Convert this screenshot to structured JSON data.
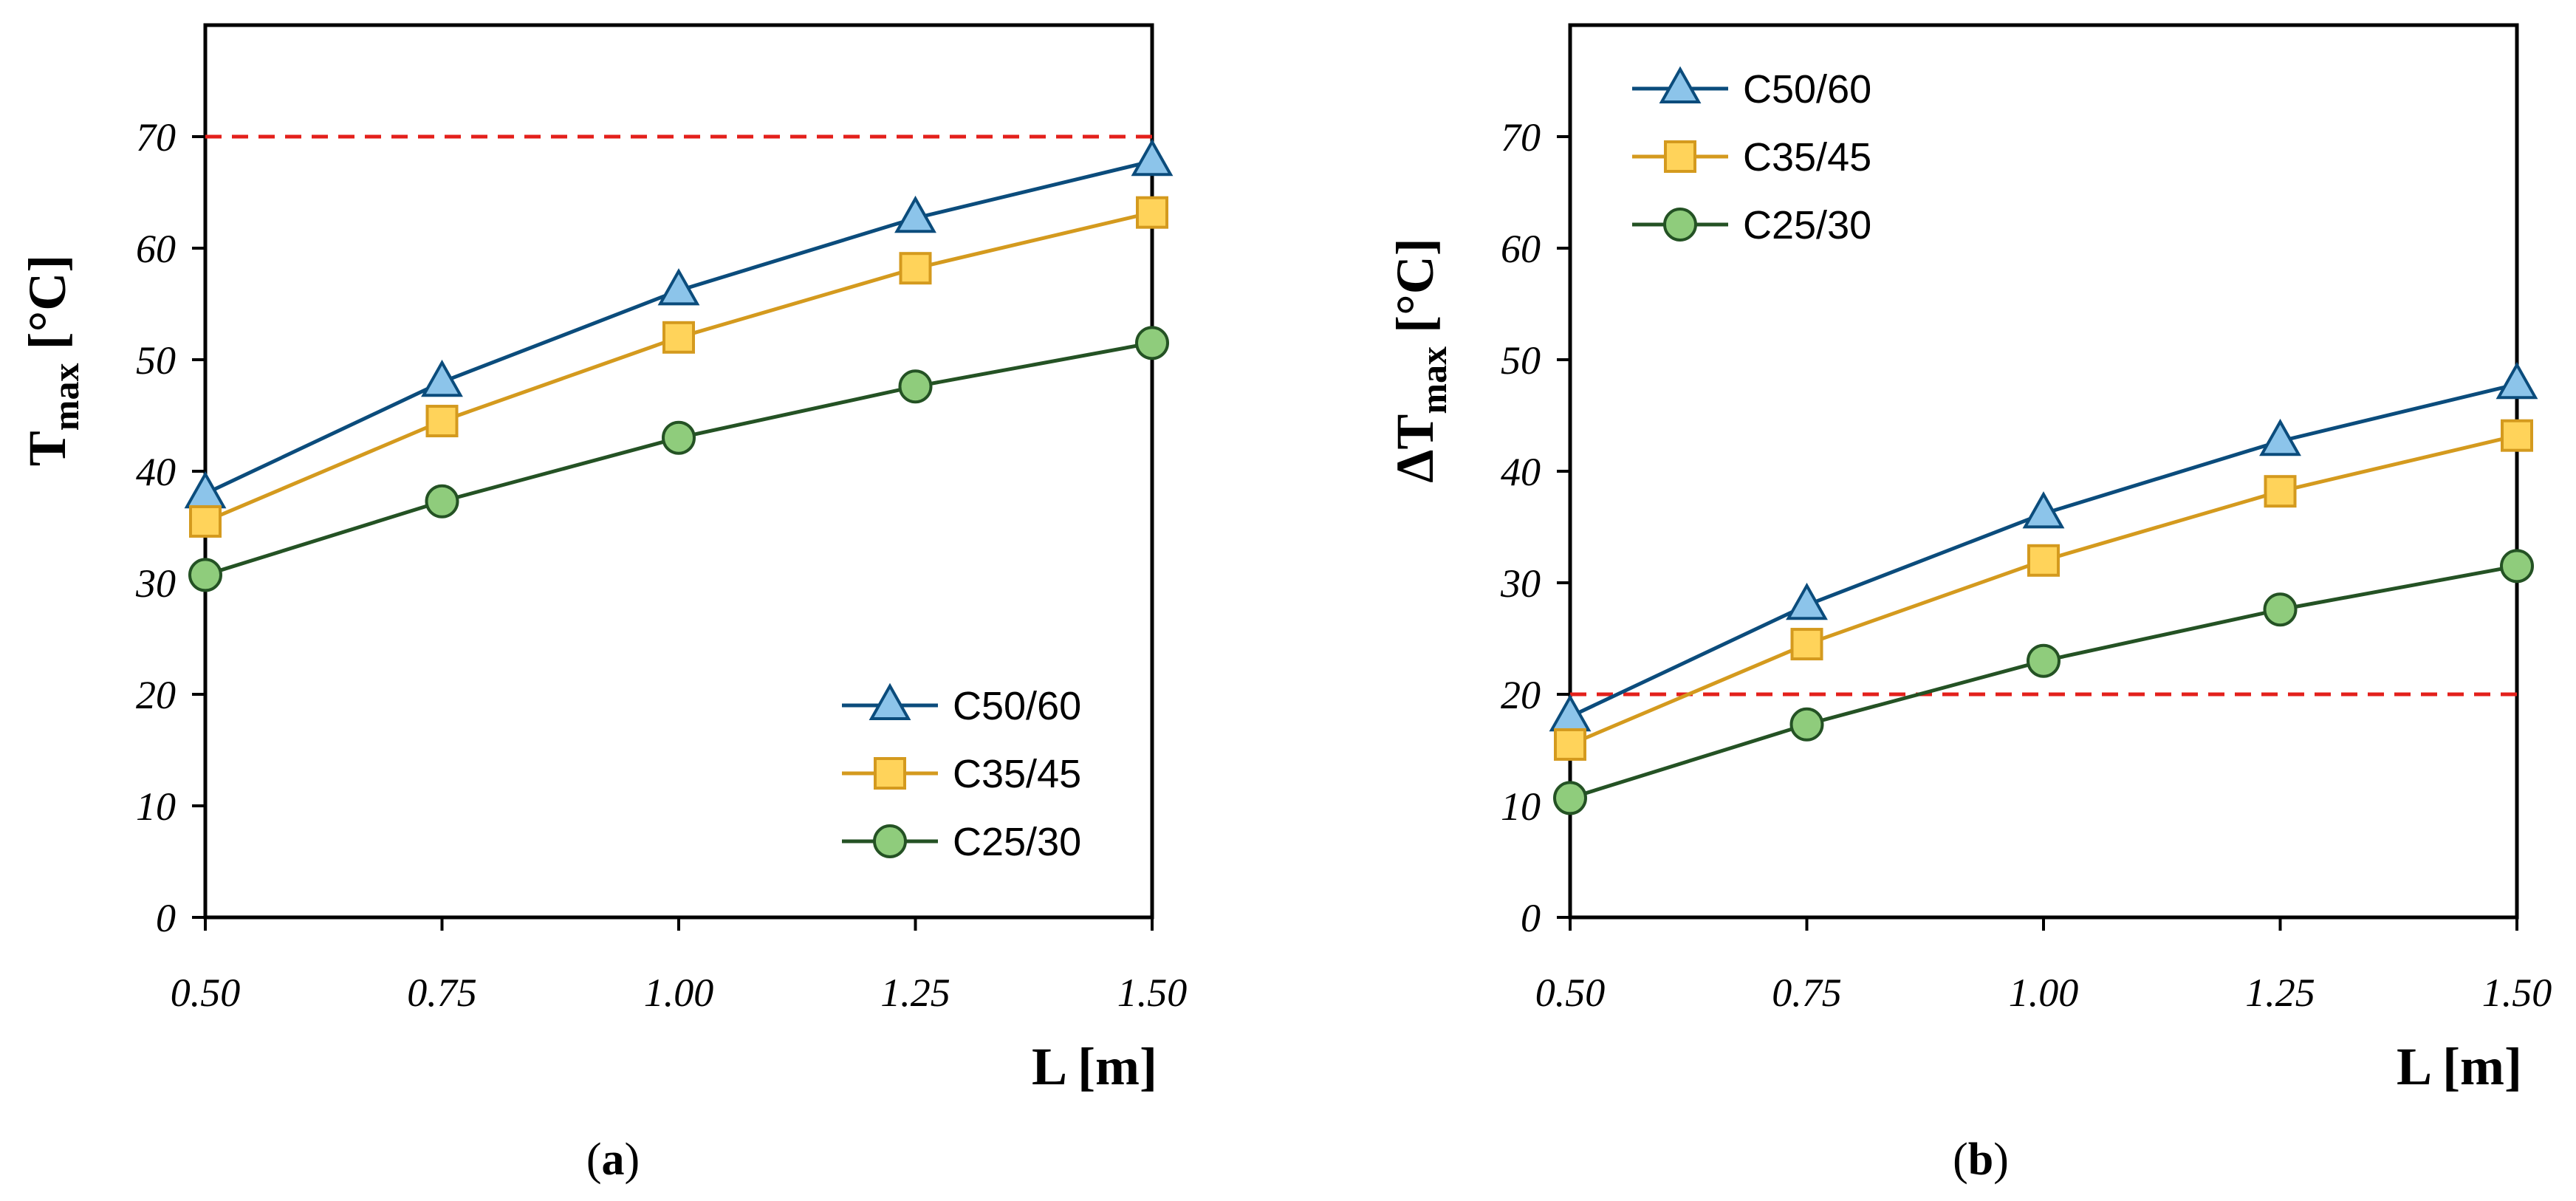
{
  "colors": {
    "C50/60_line": "#0B4C7C",
    "C50/60_fill": "#8CC4EA",
    "C35/45_line": "#D49A1E",
    "C35/45_fill": "#FFD35A",
    "C25/30_line": "#245224",
    "C25/30_fill": "#8FCC7C",
    "limit": "#E3201B"
  },
  "chart_data": [
    {
      "type": "line",
      "panel": "a",
      "caption": "a",
      "x": [
        0.5,
        0.75,
        1.0,
        1.25,
        1.5
      ],
      "xticks": [
        "0.50",
        "0.75",
        "1.00",
        "1.25",
        "1.50"
      ],
      "xlim": [
        0.5,
        1.5
      ],
      "ylim": [
        0,
        80
      ],
      "yticks": [
        0,
        10,
        20,
        30,
        40,
        50,
        60,
        70
      ],
      "xlabel": "L [m]",
      "ylabel_main": "T",
      "ylabel_sub": "max",
      "ylabel_unit": " [°C]",
      "limit_line": 70,
      "legend_position": "bottom-right",
      "series": [
        {
          "name": "C50/60",
          "marker": "triangle",
          "values": [
            38.0,
            48.0,
            56.2,
            62.7,
            67.8
          ]
        },
        {
          "name": "C35/45",
          "marker": "square",
          "values": [
            35.5,
            44.5,
            52.0,
            58.2,
            63.2
          ]
        },
        {
          "name": "C25/30",
          "marker": "circle",
          "values": [
            30.7,
            37.3,
            43.0,
            47.6,
            51.5
          ]
        }
      ]
    },
    {
      "type": "line",
      "panel": "b",
      "caption": "b",
      "x": [
        0.5,
        0.75,
        1.0,
        1.25,
        1.5
      ],
      "xticks": [
        "0.50",
        "0.75",
        "1.00",
        "1.25",
        "1.50"
      ],
      "xlim": [
        0.5,
        1.5
      ],
      "ylim": [
        0,
        80
      ],
      "yticks": [
        0,
        10,
        20,
        30,
        40,
        50,
        60,
        70
      ],
      "xlabel": "L [m]",
      "ylabel_main": "ΔT",
      "ylabel_sub": "max",
      "ylabel_unit": " [°C]",
      "limit_line": 20,
      "legend_position": "top-left",
      "series": [
        {
          "name": "C50/60",
          "marker": "triangle",
          "values": [
            18.0,
            28.0,
            36.2,
            42.7,
            47.8
          ]
        },
        {
          "name": "C35/45",
          "marker": "square",
          "values": [
            15.5,
            24.5,
            32.0,
            38.2,
            43.2
          ]
        },
        {
          "name": "C25/30",
          "marker": "circle",
          "values": [
            10.7,
            17.3,
            23.0,
            27.6,
            31.5
          ]
        }
      ]
    }
  ]
}
